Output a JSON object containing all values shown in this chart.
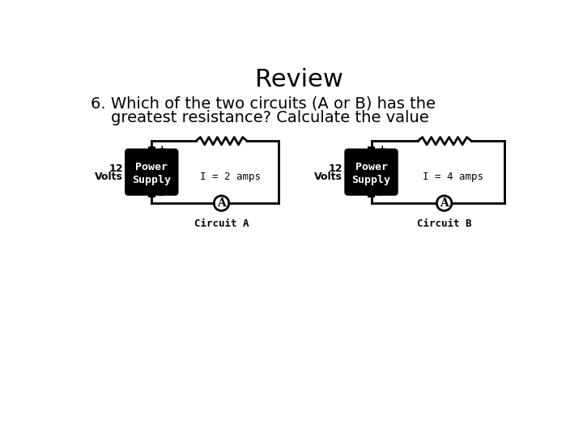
{
  "title": "Review",
  "question_line1": "6. Which of the two circuits (A or B) has the",
  "question_line2": "    greatest resistance? Calculate the value",
  "bg_color": "#ffffff",
  "title_fontsize": 22,
  "question_fontsize": 14,
  "circuit_A_label": "Circuit A",
  "circuit_B_label": "Circuit B",
  "circuit_A_current": "I = 2 amps",
  "circuit_B_current": "I = 4 amps",
  "voltage_line1": "12",
  "voltage_line2": "Volts",
  "ammeter_label": "A"
}
